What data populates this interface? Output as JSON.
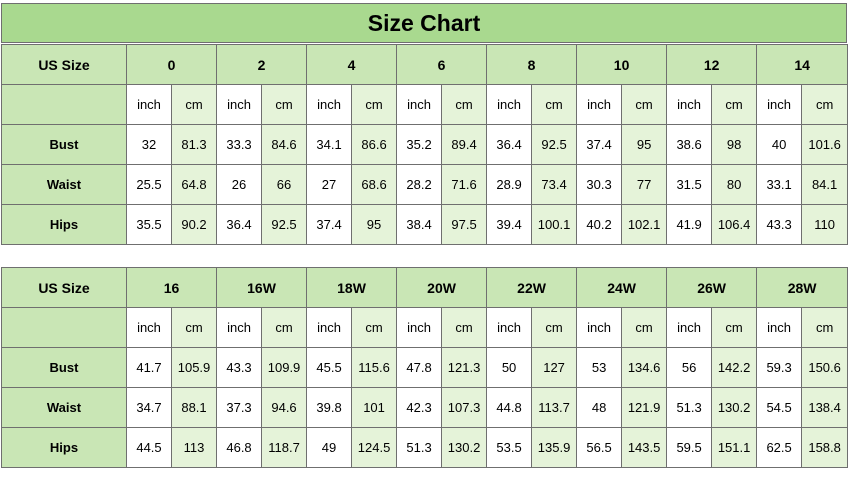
{
  "title": "Size Chart",
  "tables": [
    {
      "header_label": "US Size",
      "sizes": [
        "0",
        "2",
        "4",
        "6",
        "8",
        "10",
        "12",
        "14"
      ],
      "units": [
        "inch",
        "cm"
      ],
      "rows": [
        {
          "label": "Bust",
          "values": [
            [
              "32",
              "81.3"
            ],
            [
              "33.3",
              "84.6"
            ],
            [
              "34.1",
              "86.6"
            ],
            [
              "35.2",
              "89.4"
            ],
            [
              "36.4",
              "92.5"
            ],
            [
              "37.4",
              "95"
            ],
            [
              "38.6",
              "98"
            ],
            [
              "40",
              "101.6"
            ]
          ]
        },
        {
          "label": "Waist",
          "values": [
            [
              "25.5",
              "64.8"
            ],
            [
              "26",
              "66"
            ],
            [
              "27",
              "68.6"
            ],
            [
              "28.2",
              "71.6"
            ],
            [
              "28.9",
              "73.4"
            ],
            [
              "30.3",
              "77"
            ],
            [
              "31.5",
              "80"
            ],
            [
              "33.1",
              "84.1"
            ]
          ]
        },
        {
          "label": "Hips",
          "values": [
            [
              "35.5",
              "90.2"
            ],
            [
              "36.4",
              "92.5"
            ],
            [
              "37.4",
              "95"
            ],
            [
              "38.4",
              "97.5"
            ],
            [
              "39.4",
              "100.1"
            ],
            [
              "40.2",
              "102.1"
            ],
            [
              "41.9",
              "106.4"
            ],
            [
              "43.3",
              "110"
            ]
          ]
        }
      ]
    },
    {
      "header_label": "US Size",
      "sizes": [
        "16",
        "16W",
        "18W",
        "20W",
        "22W",
        "24W",
        "26W",
        "28W"
      ],
      "units": [
        "inch",
        "cm"
      ],
      "rows": [
        {
          "label": "Bust",
          "values": [
            [
              "41.7",
              "105.9"
            ],
            [
              "43.3",
              "109.9"
            ],
            [
              "45.5",
              "115.6"
            ],
            [
              "47.8",
              "121.3"
            ],
            [
              "50",
              "127"
            ],
            [
              "53",
              "134.6"
            ],
            [
              "56",
              "142.2"
            ],
            [
              "59.3",
              "150.6"
            ]
          ]
        },
        {
          "label": "Waist",
          "values": [
            [
              "34.7",
              "88.1"
            ],
            [
              "37.3",
              "94.6"
            ],
            [
              "39.8",
              "101"
            ],
            [
              "42.3",
              "107.3"
            ],
            [
              "44.8",
              "113.7"
            ],
            [
              "48",
              "121.9"
            ],
            [
              "51.3",
              "130.2"
            ],
            [
              "54.5",
              "138.4"
            ]
          ]
        },
        {
          "label": "Hips",
          "values": [
            [
              "44.5",
              "113"
            ],
            [
              "46.8",
              "118.7"
            ],
            [
              "49",
              "124.5"
            ],
            [
              "51.3",
              "130.2"
            ],
            [
              "53.5",
              "135.9"
            ],
            [
              "56.5",
              "143.5"
            ],
            [
              "59.5",
              "151.1"
            ],
            [
              "62.5",
              "158.8"
            ]
          ]
        }
      ]
    }
  ],
  "colors": {
    "title_bg": "#a9d98f",
    "header_bg": "#c9e6b5",
    "cm_bg": "#e5f3d9",
    "border": "#6f6f6f"
  }
}
